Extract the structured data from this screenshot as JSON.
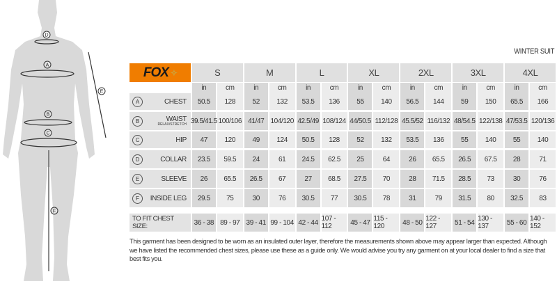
{
  "title": "WINTER SUIT",
  "brand": "FOX",
  "sizes": [
    "S",
    "M",
    "L",
    "XL",
    "2XL",
    "3XL",
    "4XL"
  ],
  "units": [
    "in",
    "cm"
  ],
  "rows": [
    {
      "marker": "A",
      "label": "CHEST",
      "sub": "",
      "values": [
        "50.5",
        "128",
        "52",
        "132",
        "53.5",
        "136",
        "55",
        "140",
        "56.5",
        "144",
        "59",
        "150",
        "65.5",
        "166"
      ]
    },
    {
      "marker": "B",
      "label": "WAIST",
      "sub": "RELAX/STRETCH",
      "values": [
        "39.5/41.5",
        "100/106",
        "41/47",
        "104/120",
        "42.5/49",
        "108/124",
        "44/50.5",
        "112/128",
        "45.5/52",
        "116/132",
        "48/54.5",
        "122/138",
        "47/53.5",
        "120/136"
      ]
    },
    {
      "marker": "C",
      "label": "HIP",
      "sub": "",
      "values": [
        "47",
        "120",
        "49",
        "124",
        "50.5",
        "128",
        "52",
        "132",
        "53.5",
        "136",
        "55",
        "140",
        "55",
        "140"
      ]
    },
    {
      "marker": "D",
      "label": "COLLAR",
      "sub": "",
      "values": [
        "23.5",
        "59.5",
        "24",
        "61",
        "24.5",
        "62.5",
        "25",
        "64",
        "26",
        "65.5",
        "26.5",
        "67.5",
        "28",
        "71"
      ]
    },
    {
      "marker": "E",
      "label": "SLEEVE",
      "sub": "",
      "values": [
        "26",
        "65.5",
        "26.5",
        "67",
        "27",
        "68.5",
        "27.5",
        "70",
        "28",
        "71.5",
        "28.5",
        "73",
        "30",
        "76"
      ]
    },
    {
      "marker": "F",
      "label": "INSIDE LEG",
      "sub": "",
      "values": [
        "29.5",
        "75",
        "30",
        "76",
        "30.5",
        "77",
        "30.5",
        "78",
        "31",
        "79",
        "31.5",
        "80",
        "32.5",
        "83"
      ]
    }
  ],
  "fit": {
    "label": "TO FIT CHEST SIZE:",
    "values": [
      "36 - 38",
      "89 - 97",
      "39 - 41",
      "99 - 104",
      "42 - 44",
      "107 - 112",
      "45 - 47",
      "115 - 120",
      "48 - 50",
      "122 - 127",
      "51 - 54",
      "130 - 137",
      "55 - 60",
      "140 - 152"
    ]
  },
  "figure_markers": [
    "D",
    "A",
    "B",
    "C",
    "E",
    "F"
  ],
  "note": "This garment has been designed to be worn as an insulated outer layer, therefore the measurements shown above may appear larger than expected. Although we have listed the recommended chest sizes, please use these as a guide only. We would advise you try any garment on at your local dealer to find a size that best fits you.",
  "colors": {
    "brand_orange": "#f07d00",
    "header_gray": "#e0e0e0",
    "in_cell": "#d8d8d8",
    "cm_cell": "#ececec",
    "figure": "#d9d9d9"
  }
}
